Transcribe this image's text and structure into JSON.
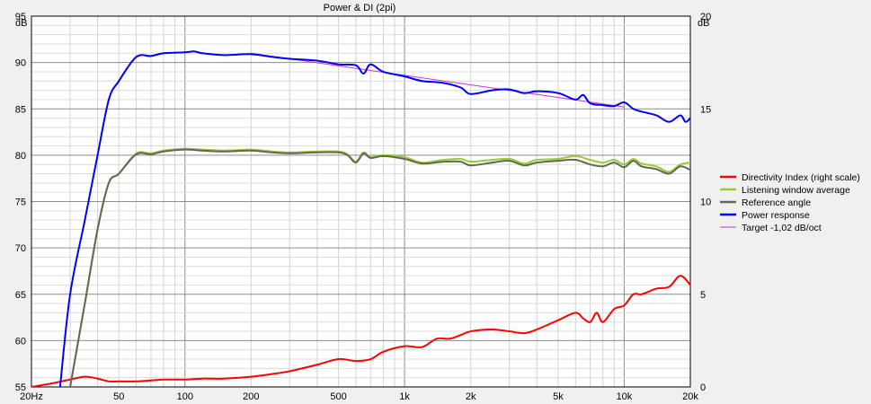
{
  "chart_data": {
    "type": "line",
    "title": "Power & DI (2pi)",
    "left_unit": "dB",
    "right_unit": "dB",
    "x_scale": "log",
    "xlim": [
      20,
      20000
    ],
    "x_tick_labels": [
      {
        "v": 20,
        "label": "20Hz"
      },
      {
        "v": 50,
        "label": "50"
      },
      {
        "v": 100,
        "label": "100"
      },
      {
        "v": 200,
        "label": "200"
      },
      {
        "v": 500,
        "label": "500"
      },
      {
        "v": 1000,
        "label": "1k"
      },
      {
        "v": 2000,
        "label": "2k"
      },
      {
        "v": 5000,
        "label": "5k"
      },
      {
        "v": 10000,
        "label": "10k"
      },
      {
        "v": 20000,
        "label": "20k"
      }
    ],
    "ylim": [
      55,
      95
    ],
    "y_ticks": [
      55,
      60,
      65,
      70,
      75,
      80,
      85,
      90,
      95
    ],
    "y2lim": [
      0,
      20
    ],
    "y2_ticks": [
      0,
      5,
      10,
      15,
      20
    ],
    "grid": true,
    "legend_position": "right",
    "series": [
      {
        "name": "Directivity Index (right scale)",
        "color": "#ff0000",
        "axis": "right",
        "points": [
          [
            20,
            0
          ],
          [
            25,
            0.2
          ],
          [
            30,
            0.4
          ],
          [
            35,
            0.55
          ],
          [
            40,
            0.45
          ],
          [
            45,
            0.3
          ],
          [
            50,
            0.3
          ],
          [
            60,
            0.3
          ],
          [
            70,
            0.35
          ],
          [
            80,
            0.4
          ],
          [
            100,
            0.4
          ],
          [
            120,
            0.45
          ],
          [
            150,
            0.45
          ],
          [
            200,
            0.55
          ],
          [
            250,
            0.7
          ],
          [
            300,
            0.85
          ],
          [
            400,
            1.2
          ],
          [
            500,
            1.5
          ],
          [
            600,
            1.4
          ],
          [
            700,
            1.5
          ],
          [
            800,
            1.9
          ],
          [
            1000,
            2.2
          ],
          [
            1200,
            2.15
          ],
          [
            1400,
            2.6
          ],
          [
            1600,
            2.6
          ],
          [
            1800,
            2.8
          ],
          [
            2000,
            3.0
          ],
          [
            2500,
            3.1
          ],
          [
            3000,
            3.0
          ],
          [
            3500,
            2.9
          ],
          [
            4000,
            3.1
          ],
          [
            5000,
            3.6
          ],
          [
            6000,
            4.0
          ],
          [
            6500,
            3.7
          ],
          [
            7000,
            3.5
          ],
          [
            7500,
            4.0
          ],
          [
            8000,
            3.5
          ],
          [
            9000,
            4.2
          ],
          [
            10000,
            4.4
          ],
          [
            11000,
            5.0
          ],
          [
            12000,
            5.0
          ],
          [
            14000,
            5.3
          ],
          [
            16000,
            5.4
          ],
          [
            18000,
            6.0
          ],
          [
            20000,
            5.5
          ]
        ]
      },
      {
        "name": "Listening window average",
        "color": "#99cc33",
        "axis": "left",
        "points": [
          [
            30,
            55
          ],
          [
            35,
            64
          ],
          [
            40,
            72
          ],
          [
            45,
            77
          ],
          [
            50,
            78
          ],
          [
            60,
            80.2
          ],
          [
            70,
            80.2
          ],
          [
            80,
            80.5
          ],
          [
            100,
            80.7
          ],
          [
            120,
            80.6
          ],
          [
            150,
            80.5
          ],
          [
            200,
            80.6
          ],
          [
            250,
            80.4
          ],
          [
            300,
            80.3
          ],
          [
            400,
            80.4
          ],
          [
            500,
            80.4
          ],
          [
            550,
            80.1
          ],
          [
            600,
            79.3
          ],
          [
            650,
            80.3
          ],
          [
            700,
            79.8
          ],
          [
            800,
            80.0
          ],
          [
            1000,
            79.8
          ],
          [
            1200,
            79.2
          ],
          [
            1500,
            79.5
          ],
          [
            1800,
            79.6
          ],
          [
            2000,
            79.3
          ],
          [
            2500,
            79.5
          ],
          [
            3000,
            79.6
          ],
          [
            3500,
            79.1
          ],
          [
            4000,
            79.5
          ],
          [
            5000,
            79.6
          ],
          [
            6000,
            79.9
          ],
          [
            7000,
            79.5
          ],
          [
            8000,
            79.2
          ],
          [
            9000,
            79.5
          ],
          [
            10000,
            79.0
          ],
          [
            11000,
            79.6
          ],
          [
            12000,
            79.1
          ],
          [
            14000,
            78.8
          ],
          [
            16000,
            78.2
          ],
          [
            18000,
            79.0
          ],
          [
            20000,
            79.2
          ]
        ]
      },
      {
        "name": "Reference angle",
        "color": "#606855",
        "axis": "left",
        "points": [
          [
            30,
            55
          ],
          [
            35,
            64
          ],
          [
            40,
            72
          ],
          [
            45,
            77
          ],
          [
            50,
            78
          ],
          [
            60,
            80.1
          ],
          [
            70,
            80.1
          ],
          [
            80,
            80.4
          ],
          [
            100,
            80.6
          ],
          [
            120,
            80.5
          ],
          [
            150,
            80.4
          ],
          [
            200,
            80.5
          ],
          [
            250,
            80.3
          ],
          [
            300,
            80.2
          ],
          [
            400,
            80.3
          ],
          [
            500,
            80.3
          ],
          [
            550,
            80.0
          ],
          [
            600,
            79.2
          ],
          [
            650,
            80.2
          ],
          [
            700,
            79.7
          ],
          [
            800,
            79.9
          ],
          [
            1000,
            79.6
          ],
          [
            1200,
            79.1
          ],
          [
            1500,
            79.3
          ],
          [
            1800,
            79.3
          ],
          [
            2000,
            78.9
          ],
          [
            2500,
            79.2
          ],
          [
            3000,
            79.4
          ],
          [
            3500,
            78.9
          ],
          [
            4000,
            79.2
          ],
          [
            5000,
            79.4
          ],
          [
            6000,
            79.5
          ],
          [
            7000,
            79.0
          ],
          [
            8000,
            78.8
          ],
          [
            9000,
            79.2
          ],
          [
            10000,
            78.7
          ],
          [
            11000,
            79.4
          ],
          [
            12000,
            78.8
          ],
          [
            14000,
            78.5
          ],
          [
            16000,
            78.0
          ],
          [
            18000,
            78.8
          ],
          [
            20000,
            78.4
          ]
        ]
      },
      {
        "name": "Power response",
        "color": "#0000ff",
        "axis": "left",
        "points": [
          [
            27,
            55
          ],
          [
            30,
            65
          ],
          [
            35,
            73
          ],
          [
            40,
            80
          ],
          [
            45,
            86
          ],
          [
            50,
            88
          ],
          [
            60,
            90.6
          ],
          [
            70,
            90.7
          ],
          [
            80,
            91.0
          ],
          [
            100,
            91.1
          ],
          [
            110,
            91.2
          ],
          [
            120,
            91.0
          ],
          [
            150,
            90.8
          ],
          [
            200,
            90.9
          ],
          [
            250,
            90.6
          ],
          [
            300,
            90.4
          ],
          [
            400,
            90.2
          ],
          [
            500,
            89.8
          ],
          [
            600,
            89.7
          ],
          [
            650,
            88.8
          ],
          [
            700,
            89.8
          ],
          [
            800,
            89.0
          ],
          [
            1000,
            88.5
          ],
          [
            1200,
            88.0
          ],
          [
            1500,
            87.8
          ],
          [
            1800,
            87.3
          ],
          [
            2000,
            86.6
          ],
          [
            2500,
            87.0
          ],
          [
            3000,
            87.1
          ],
          [
            3500,
            86.7
          ],
          [
            4000,
            86.9
          ],
          [
            5000,
            86.7
          ],
          [
            6000,
            86.0
          ],
          [
            6500,
            86.5
          ],
          [
            7000,
            85.6
          ],
          [
            8000,
            85.4
          ],
          [
            9000,
            85.3
          ],
          [
            10000,
            85.7
          ],
          [
            11000,
            85.0
          ],
          [
            12000,
            84.7
          ],
          [
            14000,
            84.3
          ],
          [
            16000,
            83.6
          ],
          [
            18000,
            84.3
          ],
          [
            19000,
            83.6
          ],
          [
            20000,
            84.0
          ]
        ]
      },
      {
        "name": "Target -1,02 dB/oct",
        "color": "#cc33cc",
        "axis": "left",
        "points": [
          [
            200,
            91.0
          ],
          [
            10000,
            85.2
          ]
        ]
      }
    ]
  }
}
